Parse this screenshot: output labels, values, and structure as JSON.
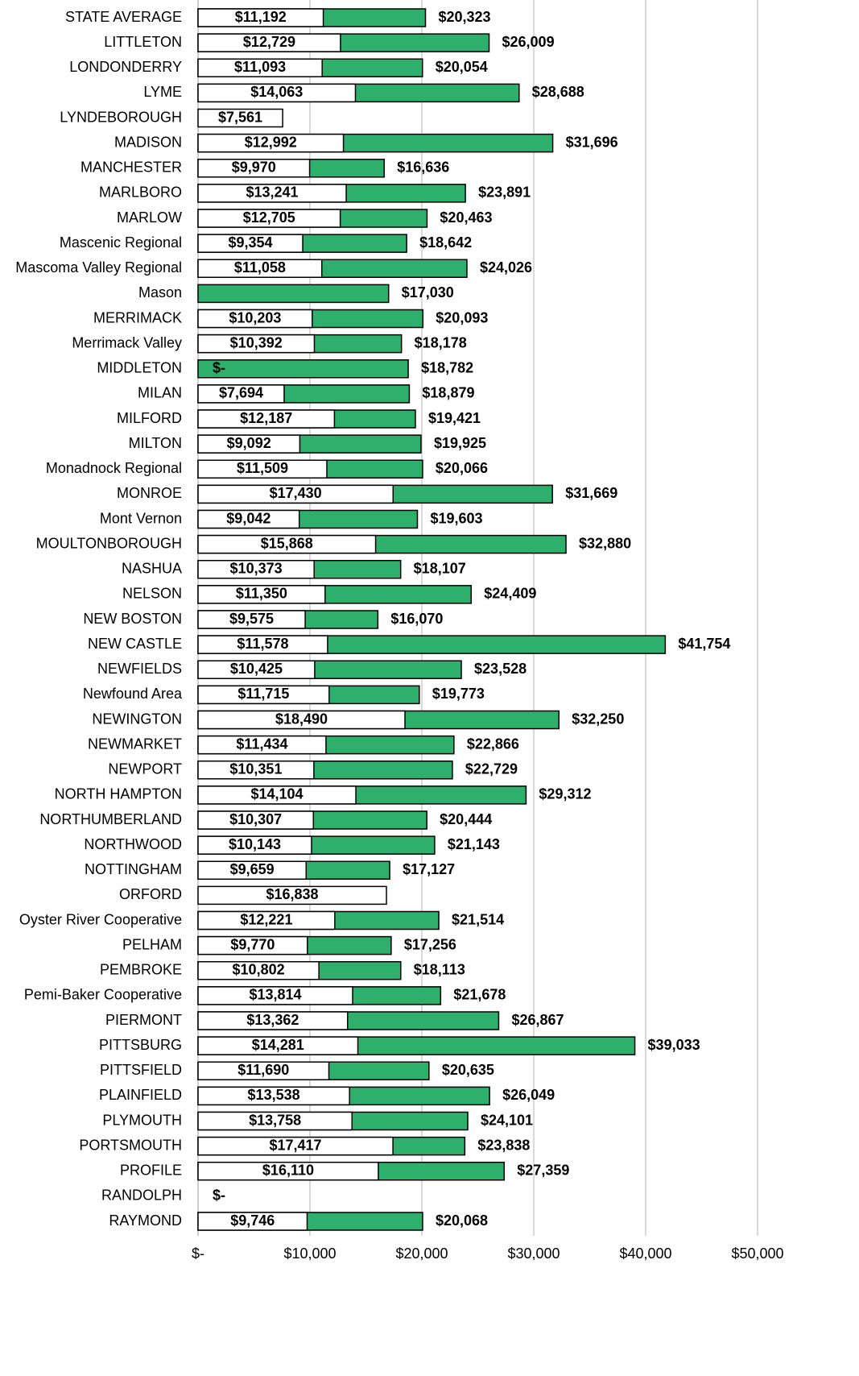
{
  "chart_data": {
    "type": "bar",
    "orientation": "horizontal",
    "overlay": true,
    "categories": [
      "STATE AVERAGE",
      "LITTLETON",
      "LONDONDERRY",
      "LYME",
      "LYNDEBOROUGH",
      "MADISON",
      "MANCHESTER",
      "MARLBORO",
      "MARLOW",
      "Mascenic Regional",
      "Mascoma Valley Regional",
      "Mason",
      "MERRIMACK",
      "Merrimack Valley",
      "MIDDLETON",
      "MILAN",
      "MILFORD",
      "MILTON",
      "Monadnock Regional",
      "MONROE",
      "Mont Vernon",
      "MOULTONBOROUGH",
      "NASHUA",
      "NELSON",
      "NEW BOSTON",
      "NEW CASTLE",
      "NEWFIELDS",
      "Newfound Area",
      "NEWINGTON",
      "NEWMARKET",
      "NEWPORT",
      "NORTH HAMPTON",
      "NORTHUMBERLAND",
      "NORTHWOOD",
      "NOTTINGHAM",
      "ORFORD",
      "Oyster River Cooperative",
      "PELHAM",
      "PEMBROKE",
      "Pemi-Baker Cooperative",
      "PIERMONT",
      "PITTSBURG",
      "PITTSFIELD",
      "PLAINFIELD",
      "PLYMOUTH",
      "PORTSMOUTH",
      "PROFILE",
      "RANDOLPH",
      "RAYMOND"
    ],
    "series": [
      {
        "color": "#ffffff",
        "values": [
          11192,
          12729,
          11093,
          14063,
          7561,
          12992,
          9970,
          13241,
          12705,
          9354,
          11058,
          null,
          10203,
          10392,
          0,
          7694,
          12187,
          9092,
          11509,
          17430,
          9042,
          15868,
          10373,
          11350,
          9575,
          11578,
          10425,
          11715,
          18490,
          11434,
          10351,
          14104,
          10307,
          10143,
          9659,
          16838,
          12221,
          9770,
          10802,
          13814,
          13362,
          14281,
          11690,
          13538,
          13758,
          17417,
          16110,
          0,
          9746
        ],
        "value_labels": [
          "$11,192",
          "$12,729",
          "$11,093",
          "$14,063",
          "$7,561",
          "$12,992",
          "$9,970",
          "$13,241",
          "$12,705",
          "$9,354",
          "$11,058",
          null,
          "$10,203",
          "$10,392",
          "$-",
          "$7,694",
          "$12,187",
          "$9,092",
          "$11,509",
          "$17,430",
          "$9,042",
          "$15,868",
          "$10,373",
          "$11,350",
          "$9,575",
          "$11,578",
          "$10,425",
          "$11,715",
          "$18,490",
          "$11,434",
          "$10,351",
          "$14,104",
          "$10,307",
          "$10,143",
          "$9,659",
          "$16,838",
          "$12,221",
          "$9,770",
          "$10,802",
          "$13,814",
          "$13,362",
          "$14,281",
          "$11,690",
          "$13,538",
          "$13,758",
          "$17,417",
          "$16,110",
          "$-",
          "$9,746"
        ]
      },
      {
        "color": "#2eaf6b",
        "values": [
          20323,
          26009,
          20054,
          28688,
          null,
          31696,
          16636,
          23891,
          20463,
          18642,
          24026,
          17030,
          20093,
          18178,
          18782,
          18879,
          19421,
          19925,
          20066,
          31669,
          19603,
          32880,
          18107,
          24409,
          16070,
          41754,
          23528,
          19773,
          32250,
          22866,
          22729,
          29312,
          20444,
          21143,
          17127,
          null,
          21514,
          17256,
          18113,
          21678,
          26867,
          39033,
          20635,
          26049,
          24101,
          23838,
          27359,
          null,
          20068
        ],
        "value_labels": [
          "$20,323",
          "$26,009",
          "$20,054",
          "$28,688",
          null,
          "$31,696",
          "$16,636",
          "$23,891",
          "$20,463",
          "$18,642",
          "$24,026",
          "$17,030",
          "$20,093",
          "$18,178",
          "$18,782",
          "$18,879",
          "$19,421",
          "$19,925",
          "$20,066",
          "$31,669",
          "$19,603",
          "$32,880",
          "$18,107",
          "$24,409",
          "$16,070",
          "$41,754",
          "$23,528",
          "$19,773",
          "$32,250",
          "$22,866",
          "$22,729",
          "$29,312",
          "$20,444",
          "$21,143",
          "$17,127",
          null,
          "$21,514",
          "$17,256",
          "$18,113",
          "$21,678",
          "$26,867",
          "$39,033",
          "$20,635",
          "$26,049",
          "$24,101",
          "$23,838",
          "$27,359",
          null,
          "$20,068"
        ]
      }
    ],
    "xlim": [
      0,
      50000
    ],
    "xticks": [
      {
        "value": 0,
        "label": "$-"
      },
      {
        "value": 10000,
        "label": "$10,000"
      },
      {
        "value": 20000,
        "label": "$20,000"
      },
      {
        "value": 30000,
        "label": "$30,000"
      },
      {
        "value": 40000,
        "label": "$40,000"
      },
      {
        "value": 50000,
        "label": "$50,000"
      }
    ],
    "grid": true
  }
}
